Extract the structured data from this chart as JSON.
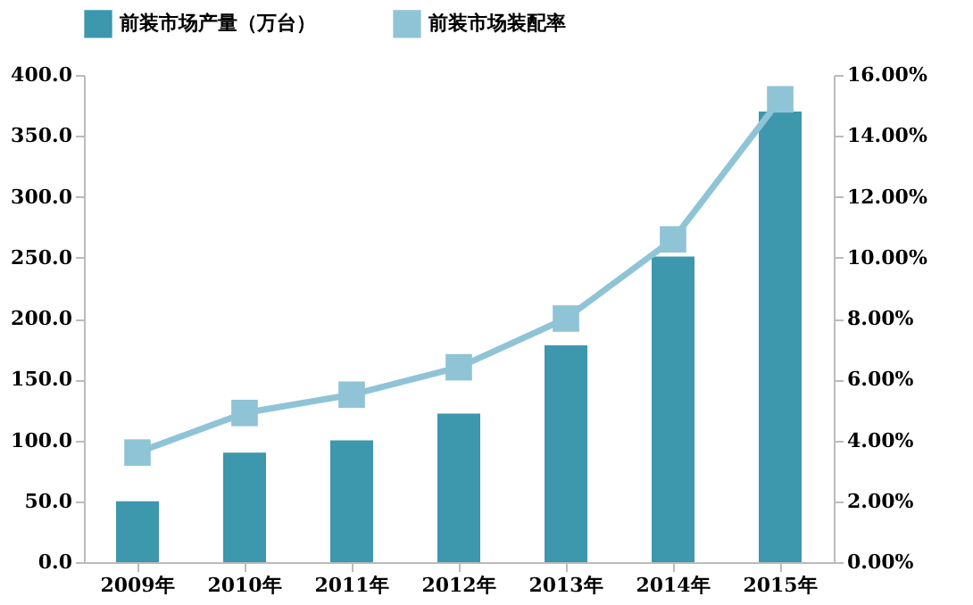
{
  "chart_data": {
    "type": "bar",
    "categories": [
      "2009年",
      "2010年",
      "2011年",
      "2012年",
      "2013年",
      "2014年",
      "2015年"
    ],
    "series": [
      {
        "name": "前装市场产量（万台）",
        "color": "#3d97ad",
        "values": [
          50,
          90,
          100,
          122,
          178,
          251,
          370
        ]
      },
      {
        "name": "前装市场装配率",
        "type": "line",
        "axis": "y2",
        "color": "#8fc4d6",
        "marker": "square",
        "values": [
          3.6,
          4.9,
          5.5,
          6.4,
          8.0,
          10.6,
          15.2
        ]
      }
    ],
    "ylim": [
      0,
      400
    ],
    "yticks": [
      {
        "value": 0,
        "label": "0.0"
      },
      {
        "value": 50,
        "label": "50.0"
      },
      {
        "value": 100,
        "label": "100.0"
      },
      {
        "value": 150,
        "label": "150.0"
      },
      {
        "value": 200,
        "label": "200.0"
      },
      {
        "value": 250,
        "label": "250.0"
      },
      {
        "value": 300,
        "label": "300.0"
      },
      {
        "value": 350,
        "label": "350.0"
      },
      {
        "value": 400,
        "label": "400.0"
      }
    ],
    "y2lim": [
      0,
      16
    ],
    "y2ticks": [
      {
        "value": 0,
        "label": "0.00%"
      },
      {
        "value": 2,
        "label": "2.00%"
      },
      {
        "value": 4,
        "label": "4.00%"
      },
      {
        "value": 6,
        "label": "6.00%"
      },
      {
        "value": 8,
        "label": "8.00%"
      },
      {
        "value": 10,
        "label": "10.00%"
      },
      {
        "value": 12,
        "label": "12.00%"
      },
      {
        "value": 14,
        "label": "14.00%"
      },
      {
        "value": 16,
        "label": "16.00%"
      }
    ],
    "grid": false,
    "legend": "top"
  }
}
